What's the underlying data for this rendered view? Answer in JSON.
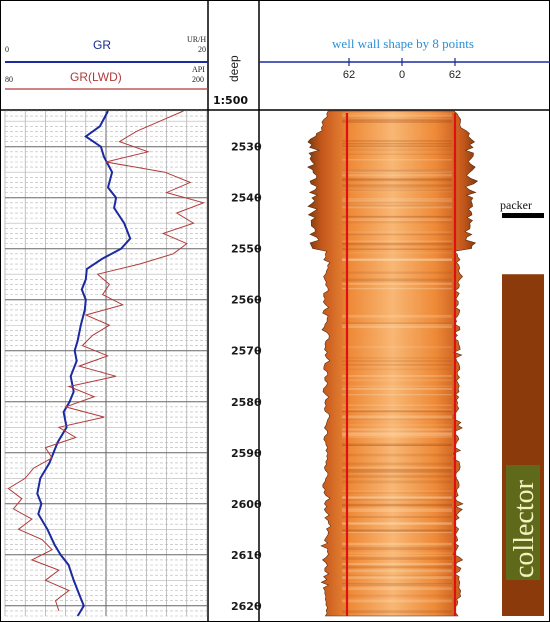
{
  "chart_data": {
    "type": "line",
    "header": {
      "gr_label": "GR",
      "gr_left": "0",
      "gr_unit": "UR/H",
      "gr_right": "20",
      "grlwd_label": "GR(LWD)",
      "grlwd_left": "80",
      "grlwd_unit": "API",
      "grlwd_right": "200",
      "depth_label": "deep",
      "scale_ratio": "1:500",
      "wall_title": "well wall shape by 8 points",
      "wall_scale": [
        "62",
        "0",
        "62"
      ]
    },
    "depth_range": [
      2523,
      2622
    ],
    "depth_ticks": [
      2530,
      2540,
      2550,
      2560,
      2570,
      2580,
      2590,
      2600,
      2610,
      2620
    ],
    "gr_range": [
      0,
      20
    ],
    "grlwd_range": [
      80,
      200
    ],
    "series": [
      {
        "name": "GR",
        "color": "#1b2aa0",
        "depth": [
          2523,
          2526,
          2528,
          2530,
          2532,
          2535,
          2538,
          2540,
          2542,
          2545,
          2548,
          2550,
          2552,
          2554,
          2556,
          2558,
          2560,
          2562,
          2565,
          2568,
          2570,
          2572,
          2575,
          2578,
          2580,
          2582,
          2585,
          2588,
          2590,
          2592,
          2595,
          2598,
          2600,
          2602,
          2605,
          2608,
          2610,
          2612,
          2615,
          2618,
          2620,
          2622
        ],
        "values": [
          10.2,
          9.4,
          8.0,
          9.5,
          9.8,
          10.6,
          10.2,
          11.0,
          10.8,
          11.8,
          12.4,
          11.5,
          9.6,
          8.1,
          8.0,
          7.6,
          8.0,
          7.9,
          7.5,
          7.2,
          6.9,
          7.1,
          6.5,
          6.8,
          6.4,
          5.8,
          6.1,
          5.2,
          4.8,
          4.4,
          3.5,
          3.2,
          3.6,
          3.3,
          4.2,
          4.9,
          5.5,
          6.3,
          6.8,
          7.4,
          7.8,
          7.2
        ]
      },
      {
        "name": "GR(LWD)",
        "color": "#b23a3a",
        "depth": [
          2523,
          2525,
          2527,
          2529,
          2531,
          2533,
          2535,
          2537,
          2539,
          2541,
          2543,
          2545,
          2547,
          2549,
          2551,
          2553,
          2555,
          2557,
          2559,
          2561,
          2563,
          2565,
          2567,
          2569,
          2571,
          2573,
          2575,
          2577,
          2579,
          2581,
          2583,
          2585,
          2587,
          2589,
          2591,
          2593,
          2595,
          2597,
          2599,
          2601,
          2603,
          2605,
          2607,
          2609,
          2611,
          2613,
          2615,
          2617,
          2619,
          2621
        ],
        "values": [
          186,
          172,
          158,
          148,
          165,
          140,
          175,
          190,
          176,
          198,
          182,
          192,
          174,
          188,
          180,
          160,
          135,
          142,
          138,
          150,
          128,
          142,
          132,
          126,
          141,
          124,
          146,
          118,
          133,
          116,
          139,
          112,
          122,
          104,
          108,
          97,
          92,
          82,
          90,
          85,
          96,
          88,
          102,
          108,
          96,
          112,
          104,
          118,
          110,
          112
        ]
      }
    ],
    "wall": {
      "depth_range": [
        2523,
        2622
      ],
      "scale_min": -62,
      "scale_max": 62,
      "redline_value": 62
    },
    "annotations": {
      "packer_label": "packer",
      "packer_depth": 2543,
      "collector_label": "collector",
      "collector_top_depth": 2555,
      "collector_bottom_depth": 2622
    }
  }
}
